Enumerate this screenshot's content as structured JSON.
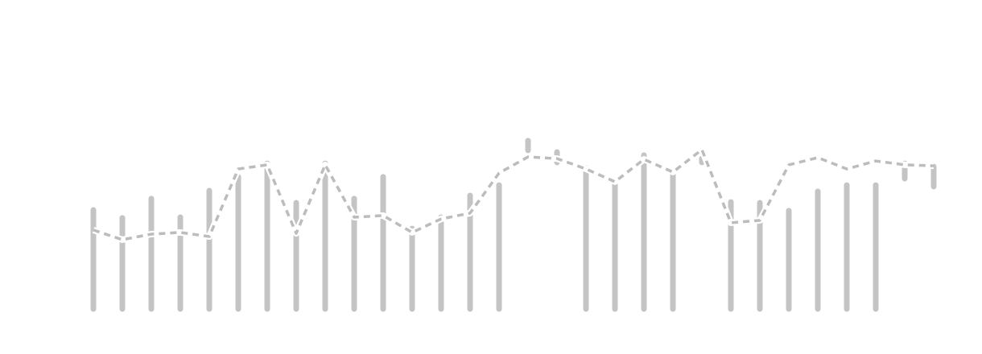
{
  "chart_data": {
    "type": "bar-line",
    "ylim": [
      0,
      100
    ],
    "values": [
      43,
      39.7,
      47.7,
      40,
      51,
      56.7,
      62.3,
      46,
      62.3,
      47.7,
      56.7,
      35.3,
      40,
      49,
      53.3,
      71.7,
      67,
      60.3,
      54,
      65.7,
      58,
      64.3,
      46.3,
      46,
      42.7,
      50.7,
      53.3,
      53.3,
      62.3,
      61
    ],
    "lows": [
      null,
      null,
      null,
      null,
      null,
      null,
      null,
      null,
      null,
      null,
      null,
      null,
      null,
      null,
      null,
      65.7,
      60.7,
      null,
      null,
      null,
      null,
      60.7,
      null,
      null,
      null,
      null,
      null,
      null,
      54,
      50.7
    ],
    "line_values": [
      33.7,
      29.7,
      32,
      32.7,
      31,
      59,
      60.7,
      32.3,
      60.7,
      39,
      39.7,
      32.7,
      38.3,
      40.7,
      57.3,
      64,
      63.3,
      59,
      53.7,
      63,
      57.7,
      67,
      36.7,
      37.7,
      60.7,
      63.7,
      59,
      62.3,
      60.7,
      60.3
    ],
    "color": "#c4c4c4",
    "line_color": "#bcbcbc"
  }
}
